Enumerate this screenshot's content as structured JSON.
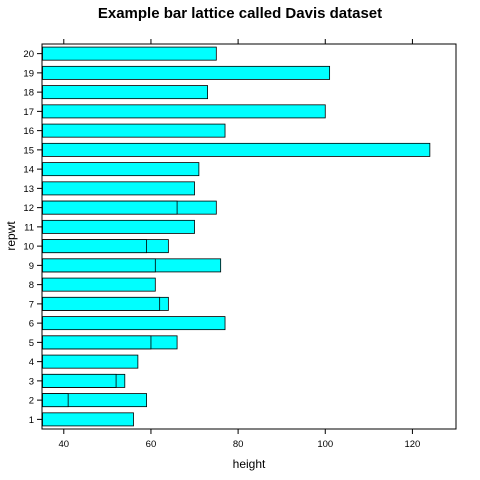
{
  "chart_data": {
    "type": "bar",
    "orientation": "horizontal",
    "title": "Example bar lattice called Davis dataset",
    "xlabel": "height",
    "ylabel": "repwt",
    "xlim": [
      35,
      130
    ],
    "x_ticks": [
      40,
      60,
      80,
      100,
      120
    ],
    "x_ticks_top": true,
    "categories": [
      "1",
      "2",
      "3",
      "4",
      "5",
      "6",
      "7",
      "8",
      "9",
      "10",
      "11",
      "12",
      "13",
      "14",
      "15",
      "16",
      "17",
      "18",
      "19",
      "20"
    ],
    "bars": [
      {
        "category": "1",
        "values": [
          56
        ]
      },
      {
        "category": "2",
        "values": [
          41,
          59
        ]
      },
      {
        "category": "3",
        "values": [
          52,
          54
        ]
      },
      {
        "category": "4",
        "values": [
          57
        ]
      },
      {
        "category": "5",
        "values": [
          60,
          66
        ]
      },
      {
        "category": "6",
        "values": [
          77
        ]
      },
      {
        "category": "7",
        "values": [
          62,
          64
        ]
      },
      {
        "category": "8",
        "values": [
          61
        ]
      },
      {
        "category": "9",
        "values": [
          61,
          76
        ]
      },
      {
        "category": "10",
        "values": [
          59,
          64
        ]
      },
      {
        "category": "11",
        "values": [
          70
        ]
      },
      {
        "category": "12",
        "values": [
          66,
          75
        ]
      },
      {
        "category": "13",
        "values": [
          70
        ]
      },
      {
        "category": "14",
        "values": [
          71
        ]
      },
      {
        "category": "15",
        "values": [
          124
        ]
      },
      {
        "category": "16",
        "values": [
          77
        ]
      },
      {
        "category": "17",
        "values": [
          100
        ]
      },
      {
        "category": "18",
        "values": [
          73
        ]
      },
      {
        "category": "19",
        "values": [
          101
        ]
      },
      {
        "category": "20",
        "values": [
          75
        ]
      }
    ],
    "bar_color": "#00ffff",
    "bar_edge_color": "#000000",
    "grid": false,
    "legend": "none"
  }
}
